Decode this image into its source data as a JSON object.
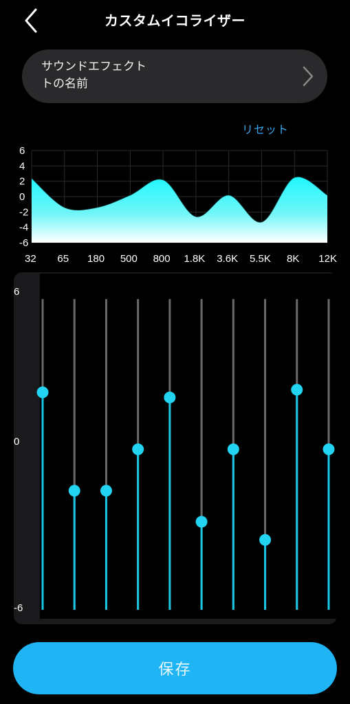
{
  "header": {
    "title": "カスタムイコライザー",
    "back_icon": "chevron-left-icon"
  },
  "effect": {
    "name_line1": "サウンドエフェクト",
    "name_line2": "トの名前",
    "chevron_icon": "chevron-right-icon"
  },
  "reset_label": "リセット",
  "curve": {
    "y_ticks": [
      "6",
      "4",
      "2",
      "0",
      "-2",
      "-4",
      "-6"
    ],
    "bands": [
      "32",
      "65",
      "180",
      "500",
      "800",
      "1.8K",
      "3.6K",
      "5.5K",
      "8K",
      "12K"
    ]
  },
  "eq": {
    "top_label": "6",
    "mid_label": "0",
    "bottom_label": "-6",
    "range": [
      -6,
      6
    ],
    "values": [
      2.4,
      -1.4,
      -1.4,
      0.2,
      2.2,
      -2.6,
      0.2,
      -3.3,
      2.5,
      0.2
    ]
  },
  "colors": {
    "accent": "#1fb4f4",
    "slider_fill": "#19c6e6",
    "knob": "#22d3f2",
    "curve_top": "#1ff3ff"
  },
  "save_label": "保存"
}
